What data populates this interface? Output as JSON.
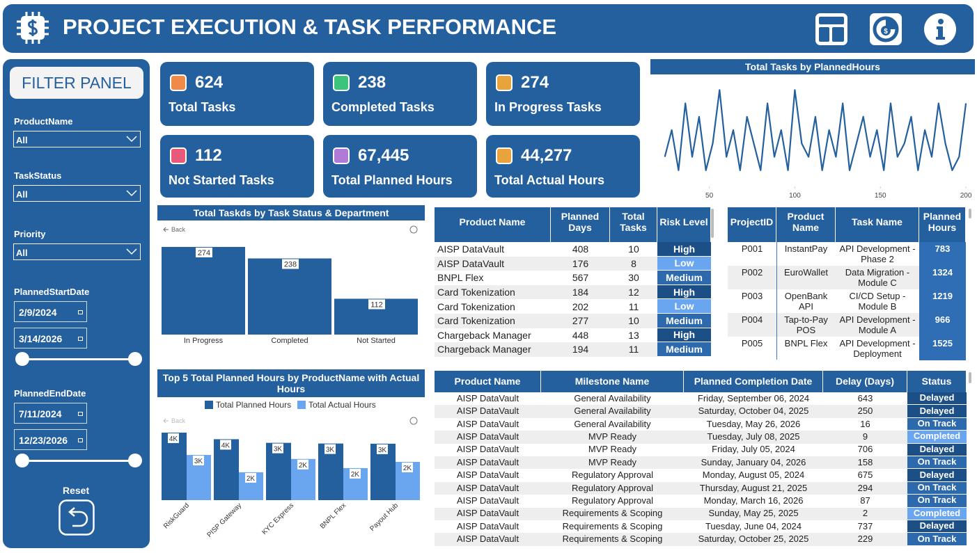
{
  "header": {
    "title": "PROJECT EXECUTION & TASK PERFORMANCE"
  },
  "filter_panel": {
    "title": "FILTER PANEL",
    "filters": [
      {
        "label": "ProductName",
        "value": "All"
      },
      {
        "label": "TaskStatus",
        "value": "All"
      },
      {
        "label": "Priority",
        "value": "All"
      }
    ],
    "date_filters": [
      {
        "label": "PlannedStartDate",
        "from": "2/9/2024",
        "to": "3/14/2026"
      },
      {
        "label": "PlannedEndDate",
        "from": "7/11/2024",
        "to": "12/23/2026"
      }
    ],
    "reset": "Reset"
  },
  "kpis": [
    {
      "value": "624",
      "label": "Total Tasks",
      "icon_color": "#f08a4b"
    },
    {
      "value": "238",
      "label": "Completed Tasks",
      "icon_color": "#3cc47c"
    },
    {
      "value": "274",
      "label": "In Progress Tasks",
      "icon_color": "#e8a33c"
    },
    {
      "value": "112",
      "label": "Not Started Tasks",
      "icon_color": "#e85a7a"
    },
    {
      "value": "67,445",
      "label": "Total Planned Hours",
      "icon_color": "#b07ad8"
    },
    {
      "value": "44,277",
      "label": "Total Actual Hours",
      "icon_color": "#e8a33c"
    }
  ],
  "line_chart": {
    "type": "line",
    "title": "Total Tasks by PlannedHours",
    "color": "#245f9e",
    "x": [
      24,
      28,
      32,
      36,
      40,
      44,
      48,
      52,
      56,
      60,
      64,
      68,
      72,
      76,
      80,
      84,
      88,
      92,
      96,
      100,
      104,
      108,
      112,
      116,
      120,
      124,
      128,
      132,
      136,
      140,
      144,
      148,
      152,
      156,
      160,
      164,
      168,
      172,
      176,
      180,
      184,
      188,
      192,
      196,
      200
    ],
    "values": [
      2,
      4,
      1,
      6,
      2,
      5,
      1,
      3,
      7,
      2,
      4,
      1,
      5,
      3,
      1,
      6,
      2,
      4,
      1,
      7,
      3,
      2,
      5,
      1,
      4,
      2,
      6,
      1,
      3,
      5,
      2,
      4,
      1,
      6,
      2,
      3,
      5,
      1,
      4,
      2,
      6,
      3,
      1,
      2,
      6
    ],
    "xlim": [
      18,
      202
    ],
    "ylim": [
      0,
      8
    ],
    "xticks": [
      50,
      100,
      150,
      200
    ]
  },
  "status_chart": {
    "type": "bar",
    "title": "Total Taskds by Task Status & Department",
    "back": "Back",
    "color": "#245f9e",
    "categories": [
      "In Progress",
      "Completed",
      "Not Started"
    ],
    "values": [
      274,
      238,
      112
    ],
    "ylim": [
      0,
      300
    ]
  },
  "hours_chart": {
    "type": "grouped_bar",
    "title": "Top 5 Total Planned Hours by ProductName with Actual Hours",
    "back": "Back",
    "categories": [
      "RiskGuard",
      "PISP Gateway",
      "KYC Express",
      "BNPL Flex",
      "Payout Hub"
    ],
    "series": [
      {
        "name": "Total Planned Hours",
        "color": "#245f9e",
        "values": [
          3900,
          3520,
          3310,
          3270,
          3260
        ],
        "value_labels": [
          "4K",
          "4K",
          "3K",
          "3K",
          "3K"
        ]
      },
      {
        "name": "Total Actual Hours",
        "color": "#6aa5ef",
        "values": [
          2610,
          1610,
          2380,
          1850,
          2210
        ],
        "value_labels": [
          "3K",
          "2K",
          "2K",
          "2K",
          "2K"
        ]
      }
    ],
    "ylim": [
      0,
      4500
    ]
  },
  "risk_table": {
    "headers": [
      "Product Name",
      "Planned Days",
      "Total Tasks",
      "Risk Level"
    ],
    "level_colors": {
      "High": "#1d4f87",
      "Low": "#6aa5ef",
      "Medium": "#2c69ad"
    },
    "rows": [
      [
        "AISP DataVault",
        408,
        10,
        "High"
      ],
      [
        "AISP DataVault",
        176,
        8,
        "Low"
      ],
      [
        "BNPL Flex",
        567,
        30,
        "Medium"
      ],
      [
        "Card Tokenization",
        184,
        12,
        "High"
      ],
      [
        "Card Tokenization",
        202,
        11,
        "Low"
      ],
      [
        "Card Tokenization",
        277,
        10,
        "Medium"
      ],
      [
        "Chargeback Manager",
        448,
        13,
        "High"
      ],
      [
        "Chargeback Manager",
        194,
        11,
        "Medium"
      ]
    ]
  },
  "project_table": {
    "headers": [
      "ProjectID",
      "Product Name",
      "Task Name",
      "Planned Hours"
    ],
    "rows": [
      [
        "P001",
        "InstantPay",
        "API Development - Phase 2",
        783
      ],
      [
        "P002",
        "EuroWallet",
        "Data Migration - Module C",
        1324
      ],
      [
        "P003",
        "OpenBank API",
        "CI/CD Setup - Module B",
        1219
      ],
      [
        "P004",
        "Tap-to-Pay POS",
        "API Development - Module A",
        966
      ],
      [
        "P005",
        "BNPL Flex",
        "API Development - Deployment",
        1525
      ]
    ]
  },
  "milestone_table": {
    "headers": [
      "Product Name",
      "Milestone Name",
      "Planned Completion Date",
      "Delay (Days)",
      "Status"
    ],
    "status_colors": {
      "Delayed": "#1d4f87",
      "On Track": "#2c69ad",
      "Completed": "#6aa5ef"
    },
    "rows": [
      [
        "AISP DataVault",
        "General Availability",
        "Friday, September 06, 2024",
        643,
        "Delayed"
      ],
      [
        "AISP DataVault",
        "General Availability",
        "Saturday, October 04, 2025",
        250,
        "Delayed"
      ],
      [
        "AISP DataVault",
        "General Availability",
        "Tuesday, May 26, 2026",
        16,
        "On Track"
      ],
      [
        "AISP DataVault",
        "MVP Ready",
        "Tuesday, July 08, 2025",
        9,
        "Completed"
      ],
      [
        "AISP DataVault",
        "MVP Ready",
        "Friday, July 05, 2024",
        706,
        "Delayed"
      ],
      [
        "AISP DataVault",
        "MVP Ready",
        "Sunday, January 04, 2026",
        158,
        "On Track"
      ],
      [
        "AISP DataVault",
        "Regulatory Approval",
        "Monday, August 05, 2024",
        675,
        "Delayed"
      ],
      [
        "AISP DataVault",
        "Regulatory Approval",
        "Thursday, August 21, 2025",
        294,
        "On Track"
      ],
      [
        "AISP DataVault",
        "Regulatory Approval",
        "Monday, March 16, 2026",
        87,
        "On Track"
      ],
      [
        "AISP DataVault",
        "Requirements & Scoping",
        "Sunday, May 25, 2025",
        2,
        "Completed"
      ],
      [
        "AISP DataVault",
        "Requirements & Scoping",
        "Tuesday, June 04, 2024",
        737,
        "Delayed"
      ],
      [
        "AISP DataVault",
        "Requirements & Scoping",
        "Saturday, October 25, 2025",
        229,
        "On Track"
      ]
    ]
  }
}
